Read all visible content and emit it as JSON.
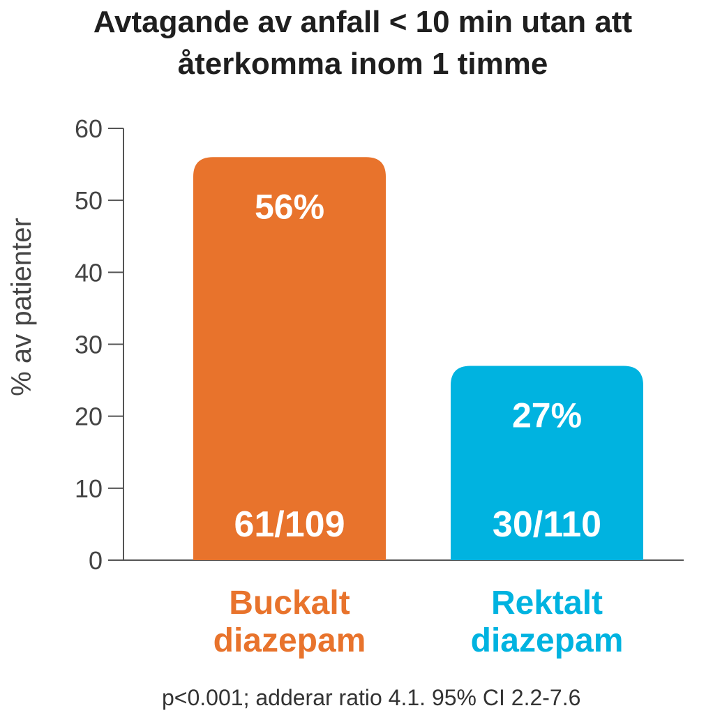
{
  "chart_data": {
    "type": "bar",
    "title": "Avtagande av anfall < 10 min utan att återkomma inom 1 timme",
    "ylabel": "% av patienter",
    "xlabel": "",
    "ylim": [
      0,
      60
    ],
    "yticks": [
      0,
      10,
      20,
      30,
      40,
      50,
      60
    ],
    "ytick_labels": [
      "0",
      "10",
      "20",
      "30",
      "40",
      "50",
      "60"
    ],
    "categories": [
      "Buckalt diazepam",
      "Rektalt diazepam"
    ],
    "category_lines": [
      [
        "Buckalt",
        "diazepam"
      ],
      [
        "Rektalt",
        "diazepam"
      ]
    ],
    "values": [
      56,
      27
    ],
    "value_labels": [
      "56%",
      "27%"
    ],
    "count_labels": [
      "61/109",
      "30/110"
    ],
    "colors": [
      "#e8732c",
      "#00b3e0"
    ],
    "grid": false,
    "legend": "none"
  },
  "footnote": "p<0.001; adderar ratio 4.1. 95% CI 2.2-7.6"
}
